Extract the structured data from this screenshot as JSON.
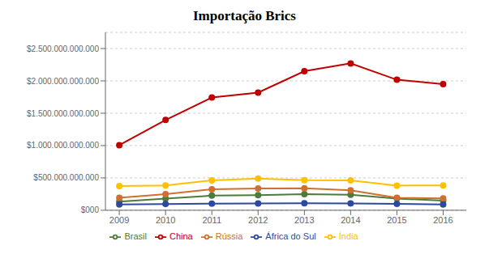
{
  "chart_data": {
    "type": "line",
    "title": "Importação Brics",
    "x": [
      2009,
      2010,
      2011,
      2012,
      2013,
      2014,
      2015,
      2016
    ],
    "xlim": [
      2008.7,
      2016.5
    ],
    "xticks": [
      2009,
      2010,
      2011,
      2012,
      2013,
      2014,
      2015,
      2016
    ],
    "ylim": [
      0,
      2750000000000
    ],
    "yticks": [
      {
        "value": 0,
        "label": "$000"
      },
      {
        "value": 500000000000,
        "label": "$500.000.000.000"
      },
      {
        "value": 1000000000000,
        "label": "$1.000.000.000.000"
      },
      {
        "value": 1500000000000,
        "label": "$1.500.000.000.000"
      },
      {
        "value": 2000000000000,
        "label": "$2.000.000.000.000"
      },
      {
        "value": 2500000000000,
        "label": "$2.500.000.000.000"
      }
    ],
    "grid": true,
    "legend": "bottom",
    "series": [
      {
        "name": "Brasil",
        "color": "#4E7B3A",
        "marker": "circle",
        "values": [
          133000000000,
          181000000000,
          226000000000,
          233000000000,
          249000000000,
          239000000000,
          179000000000,
          150000000000
        ]
      },
      {
        "name": "Rússia",
        "color": "#D07030",
        "marker": "circle",
        "values": [
          192000000000,
          249000000000,
          323000000000,
          335000000000,
          341000000000,
          308000000000,
          193000000000,
          182000000000
        ]
      },
      {
        "name": "China",
        "color": "#C00000",
        "marker": "circle",
        "values": [
          1006000000000,
          1395000000000,
          1743000000000,
          1818000000000,
          2150000000000,
          2270000000000,
          2017000000000,
          1950000000000
        ]
      },
      {
        "name": "Índia",
        "color": "#FFC000",
        "marker": "circle",
        "values": [
          374000000000,
          383000000000,
          462000000000,
          489000000000,
          466000000000,
          460000000000,
          381000000000,
          384000000000
        ]
      },
      {
        "name": "África do Sul",
        "color": "#2E4A9E",
        "marker": "circle",
        "values": [
          90000000000,
          97000000000,
          102000000000,
          105000000000,
          107000000000,
          106000000000,
          98000000000,
          89000000000
        ]
      }
    ]
  }
}
